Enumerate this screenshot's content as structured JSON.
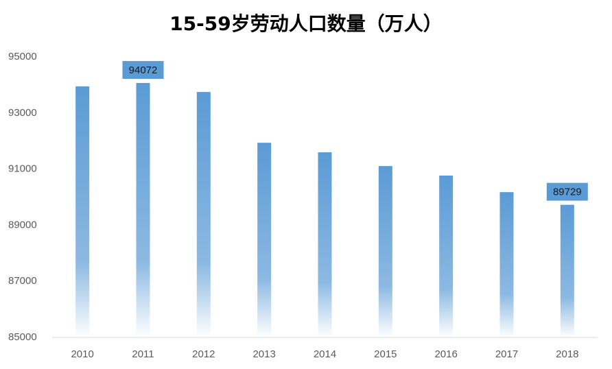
{
  "chart_data": {
    "type": "bar",
    "title": "15-59岁劳动人口数量（万人）",
    "categories": [
      "2010",
      "2011",
      "2012",
      "2013",
      "2014",
      "2015",
      "2016",
      "2017",
      "2018"
    ],
    "values": [
      93950,
      94072,
      93750,
      91940,
      91600,
      91110,
      90770,
      90180,
      89729
    ],
    "value_labels": [
      null,
      "94072",
      null,
      null,
      null,
      null,
      null,
      null,
      "89729"
    ],
    "color": "#5b9bd5",
    "ylim": [
      85000,
      95000
    ],
    "yticks": [
      85000,
      87000,
      89000,
      91000,
      93000,
      95000
    ],
    "grid": false
  }
}
